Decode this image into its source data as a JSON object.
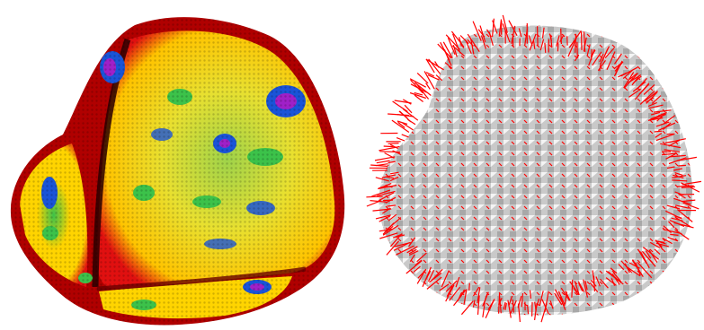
{
  "panels": [
    {
      "name": "curvature-map-render",
      "colors": {
        "edge": "#b00000",
        "ridge": "#2a0000",
        "high": "#e01010",
        "mid_high": "#ffd400",
        "mid": "#3cc24a",
        "low": "#1a54d8",
        "lowest": "#a020c8"
      }
    },
    {
      "name": "vector-field-render",
      "colors": {
        "surface": "#c9c9c9",
        "highlight": "#f4f4f4",
        "vectors": "#ff0000"
      }
    }
  ]
}
